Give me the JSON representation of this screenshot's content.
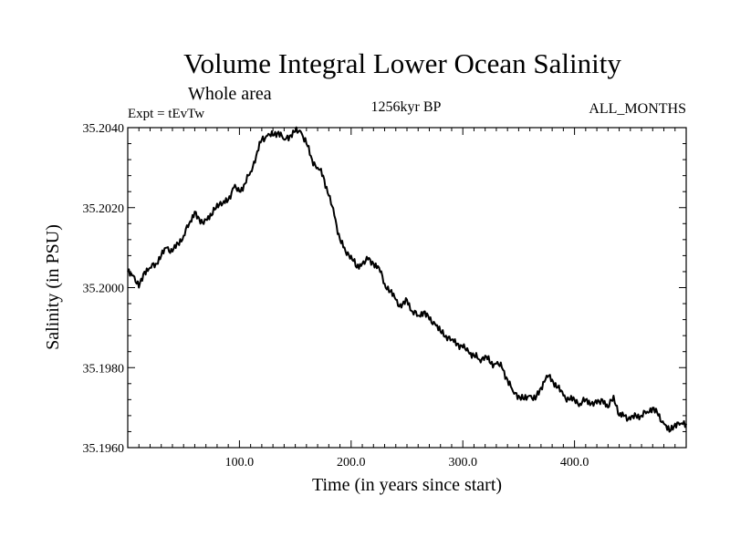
{
  "chart_data": {
    "type": "line",
    "title": "Volume Integral Lower Ocean Salinity",
    "subtitle": "Whole area",
    "experiment_label": "Expt = tEvTw",
    "period_label": "1256kyr BP",
    "months_label": "ALL_MONTHS",
    "xlabel": "Time (in years since start)",
    "ylabel": "Salinity (in PSU)",
    "xlim": [
      0,
      500
    ],
    "ylim": [
      35.196,
      35.204
    ],
    "x_ticks": [
      100,
      200,
      300,
      400
    ],
    "x_tick_labels": [
      "100.0",
      "200.0",
      "300.0",
      "400.0"
    ],
    "y_ticks": [
      35.196,
      35.198,
      35.2,
      35.202,
      35.204
    ],
    "y_tick_labels": [
      "35.1960",
      "35.1980",
      "35.2000",
      "35.2020",
      "35.2040"
    ],
    "grid": false,
    "series": [
      {
        "name": "Salinity",
        "color": "#000000",
        "x": [
          0,
          5,
          10,
          15,
          20,
          25,
          30,
          35,
          40,
          45,
          50,
          55,
          60,
          65,
          70,
          75,
          80,
          85,
          90,
          95,
          100,
          105,
          110,
          115,
          120,
          125,
          130,
          135,
          140,
          145,
          150,
          155,
          160,
          165,
          170,
          175,
          180,
          185,
          190,
          195,
          200,
          205,
          210,
          215,
          220,
          225,
          230,
          235,
          240,
          245,
          250,
          255,
          260,
          265,
          270,
          275,
          280,
          285,
          290,
          295,
          300,
          305,
          310,
          315,
          320,
          325,
          330,
          335,
          340,
          345,
          350,
          355,
          360,
          365,
          370,
          375,
          380,
          385,
          390,
          395,
          400,
          405,
          410,
          415,
          420,
          425,
          430,
          435,
          440,
          445,
          450,
          455,
          460,
          465,
          470,
          475,
          480,
          485,
          490,
          495,
          500
        ],
        "values": [
          35.2004,
          35.2003,
          35.2,
          35.2004,
          35.2005,
          35.2006,
          35.2008,
          35.201,
          35.2009,
          35.2011,
          35.2013,
          35.2016,
          35.2019,
          35.2016,
          35.2017,
          35.2018,
          35.2021,
          35.2021,
          35.2022,
          35.2025,
          35.2024,
          35.2026,
          35.2029,
          35.2033,
          35.2037,
          35.2038,
          35.2038,
          35.2039,
          35.2037,
          35.2038,
          35.2039,
          35.2039,
          35.2036,
          35.2032,
          35.203,
          35.2028,
          35.2023,
          35.2018,
          35.2012,
          35.2009,
          35.2008,
          35.2005,
          35.2006,
          35.2007,
          35.2006,
          35.2005,
          35.2001,
          35.1999,
          35.1997,
          35.1995,
          35.1997,
          35.1994,
          35.1993,
          35.1994,
          35.1992,
          35.1991,
          35.1989,
          35.1988,
          35.1987,
          35.1986,
          35.1985,
          35.1984,
          35.1983,
          35.1982,
          35.1983,
          35.1981,
          35.1981,
          35.198,
          35.1977,
          35.1974,
          35.1973,
          35.1972,
          35.1973,
          35.1972,
          35.1975,
          35.1978,
          35.1977,
          35.1975,
          35.1973,
          35.1972,
          35.1972,
          35.1971,
          35.1972,
          35.1971,
          35.1971,
          35.1972,
          35.197,
          35.1973,
          35.1968,
          35.1968,
          35.1967,
          35.1968,
          35.1968,
          35.1969,
          35.197,
          35.1968,
          35.1966,
          35.1964,
          35.1966,
          35.1966,
          35.1966
        ]
      }
    ]
  }
}
